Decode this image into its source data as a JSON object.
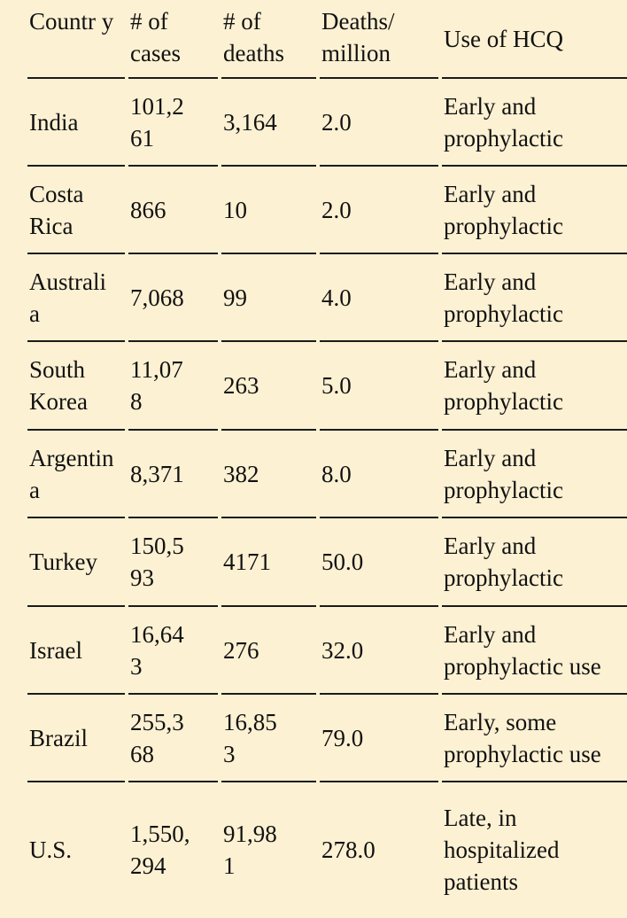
{
  "table": {
    "headers": {
      "country": "Countr y",
      "cases": "# of cases",
      "deaths": "# of deaths",
      "deaths_per_million": "Deaths/ million",
      "hcq_use": "Use of HCQ"
    },
    "rows": [
      {
        "country": "India",
        "cases": "101,261",
        "deaths": "3,164",
        "dpm": "2.0",
        "hcq": "Early and prophylactic"
      },
      {
        "country": "Costa Rica",
        "cases": "866",
        "deaths": "10",
        "dpm": "2.0",
        "hcq": "Early and prophylactic"
      },
      {
        "country": "Australia",
        "cases": "7,068",
        "deaths": "99",
        "dpm": "4.0",
        "hcq": "Early and prophylactic"
      },
      {
        "country": "South Korea",
        "cases": "11,078",
        "deaths": "263",
        "dpm": "5.0",
        "hcq": "Early and prophylactic"
      },
      {
        "country": "Argentina",
        "cases": "8,371",
        "deaths": "382",
        "dpm": "8.0",
        "hcq": "Early and prophylactic"
      },
      {
        "country": "Turkey",
        "cases": "150,593",
        "deaths": "4171",
        "dpm": "50.0",
        "hcq": "Early and prophylactic"
      },
      {
        "country": "Israel",
        "cases": "16,643",
        "deaths": "276",
        "dpm": "32.0",
        "hcq": "Early and prophylactic use"
      },
      {
        "country": "Brazil",
        "cases": "255,368",
        "deaths": "16,853",
        "dpm": "79.0",
        "hcq": "Early, some prophylactic use"
      },
      {
        "country": "U.S.",
        "cases": "1,550,294",
        "deaths": "91,981",
        "dpm": "278.0",
        "hcq": "Late, in hospitalized patients"
      }
    ]
  }
}
